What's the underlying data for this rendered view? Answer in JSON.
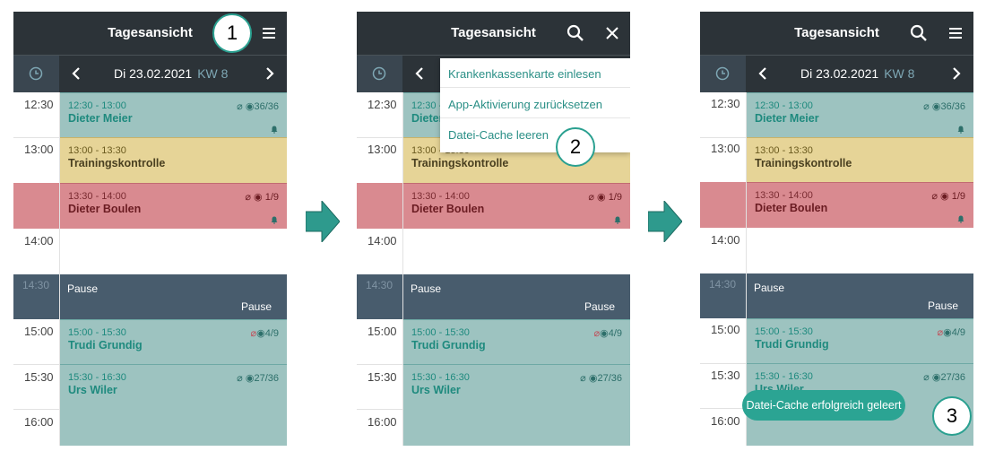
{
  "common": {
    "title": "Tagesansicht",
    "date": "Di 23.02.2021",
    "week": "KW 8",
    "times": [
      "12:30",
      "13:00",
      "14:00",
      "14:30",
      "15:00",
      "15:30",
      "16:00"
    ],
    "appointments": [
      {
        "time": "12:30 - 13:00",
        "name": "Dieter Meier",
        "meta": "36/36"
      },
      {
        "time": "13:00 - 13:30",
        "name": "Trainingskontrolle"
      },
      {
        "time": "13:30 - 14:00",
        "name": "Dieter Boulen",
        "meta": "1/9"
      },
      {
        "time": "15:00 - 15:30",
        "name": "Trudi Grundig",
        "meta": "4/9"
      },
      {
        "time": "15:30 - 16:30",
        "name": "Urs Wiler",
        "meta": "27/36"
      }
    ],
    "pause": {
      "label": "Pause",
      "label_right": "Pause"
    }
  },
  "menu": {
    "items": [
      "Krankenkassenkarte einlesen",
      "App-Aktivierung zurücksetzen",
      "Datei-Cache leeren"
    ]
  },
  "toast": "Datei-Cache erfolgreich geleert",
  "callouts": [
    "1",
    "2",
    "3"
  ],
  "colors": {
    "header": "#2c3338",
    "teal_appointment": "#9dc3c0",
    "yellow_appointment": "#e6d497",
    "red_appointment": "#d98a90",
    "pause": "#485c6d",
    "accent": "#2ba493"
  },
  "icons": [
    "menu-icon",
    "search-icon",
    "close-icon",
    "clock-icon",
    "chevron-left-icon",
    "chevron-right-icon",
    "paperclip-icon",
    "target-icon",
    "bell-icon",
    "arrow-right-icon"
  ]
}
